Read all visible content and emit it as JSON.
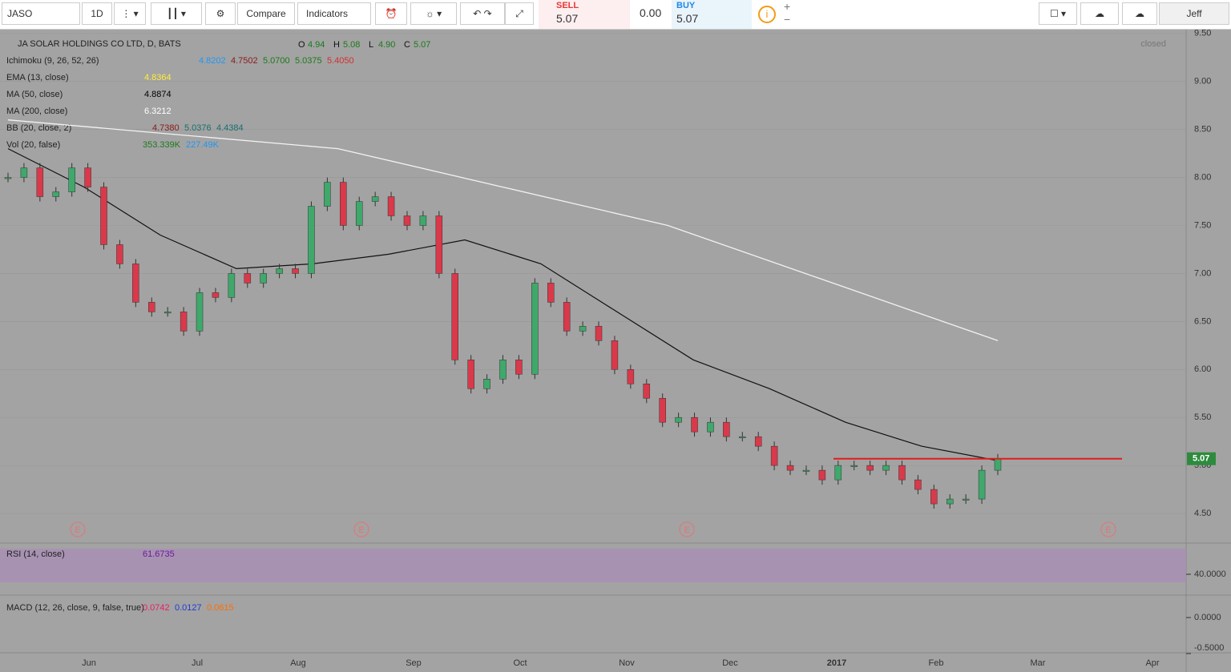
{
  "toolbar": {
    "symbol": "JASO",
    "interval": "1D",
    "compare": "Compare",
    "indicators": "Indicators",
    "sell_label": "SELL",
    "sell_price": "5.07",
    "spread": "0.00",
    "buy_label": "BUY",
    "buy_price": "5.07",
    "user": "Jeff"
  },
  "chart": {
    "title": "JA SOLAR HOLDINGS CO LTD, D, BATS",
    "ohlc": [
      {
        "k": "O",
        "v": "4.94"
      },
      {
        "k": "H",
        "v": "5.08"
      },
      {
        "k": "L",
        "v": "4.90"
      },
      {
        "k": "C",
        "v": "5.07"
      }
    ],
    "status": "closed",
    "indicators": [
      {
        "name": "Ichimoku (9, 26, 52, 26)",
        "values": [
          {
            "v": "4.8202",
            "color": "#2196f3"
          },
          {
            "v": "4.7502",
            "color": "#8b1a1a"
          },
          {
            "v": "5.0700",
            "color": "#1b7a1b"
          },
          {
            "v": "5.0375",
            "color": "#1b7a1b"
          },
          {
            "v": "5.4050",
            "color": "#d32f2f"
          }
        ]
      },
      {
        "name": "EMA (13, close)",
        "values": [
          {
            "v": "4.8364",
            "color": "#ffeb3b"
          }
        ]
      },
      {
        "name": "MA (50, close)",
        "values": [
          {
            "v": "4.8874",
            "color": "#000000"
          }
        ]
      },
      {
        "name": "MA (200, close)",
        "values": [
          {
            "v": "6.3212",
            "color": "#ffffff"
          }
        ]
      },
      {
        "name": "BB (20, close, 2)",
        "values": [
          {
            "v": "4.7380",
            "color": "#8b1a1a"
          },
          {
            "v": "5.0376",
            "color": "#1b6e6e"
          },
          {
            "v": "4.4384",
            "color": "#1b6e6e"
          }
        ]
      },
      {
        "name": "Vol (20, false)",
        "values": [
          {
            "v": "353.339K",
            "color": "#1b7a1b"
          },
          {
            "v": "227.49K",
            "color": "#2196f3"
          }
        ]
      }
    ],
    "price_ticks": [
      {
        "value": 9.5,
        "label": "9.50"
      },
      {
        "value": 9,
        "label": "9.00"
      },
      {
        "value": 8.5,
        "label": "8.50"
      },
      {
        "value": 8,
        "label": "8.00"
      },
      {
        "value": 7.5,
        "label": "7.50"
      },
      {
        "value": 7,
        "label": "7.00"
      },
      {
        "value": 6.5,
        "label": "6.50"
      },
      {
        "value": 6,
        "label": "6.00"
      },
      {
        "value": 5.5,
        "label": "5.50"
      },
      {
        "value": 5,
        "label": "5.00"
      },
      {
        "value": 4.5,
        "label": "4.50"
      }
    ],
    "ylim": [
      4.2,
      9.54
    ],
    "last_price": {
      "value": 5.07,
      "label": "5.07"
    },
    "closes": [
      8.0,
      8.1,
      7.8,
      7.85,
      8.1,
      7.9,
      7.3,
      7.1,
      6.7,
      6.6,
      6.6,
      6.4,
      6.8,
      6.75,
      7.0,
      6.9,
      7.0,
      7.05,
      7.0,
      7.7,
      7.95,
      7.5,
      7.75,
      7.8,
      7.6,
      7.5,
      7.6,
      7.0,
      6.1,
      5.8,
      5.9,
      6.1,
      5.95,
      6.9,
      6.7,
      6.4,
      6.45,
      6.3,
      6.0,
      5.85,
      5.7,
      5.45,
      5.5,
      5.35,
      5.45,
      5.3,
      5.3,
      5.2,
      5.0,
      4.95,
      4.95,
      4.85,
      5.0,
      5.0,
      4.95,
      5.0,
      4.85,
      4.75,
      4.6,
      4.65,
      4.65,
      4.95,
      5.07
    ],
    "ma50": [
      8.3,
      7.9,
      7.4,
      7.05,
      7.1,
      7.2,
      7.35,
      7.1,
      6.6,
      6.1,
      5.8,
      5.45,
      5.2,
      5.05
    ],
    "ma200": [
      8.6,
      8.45,
      8.3,
      7.9,
      7.5,
      6.9,
      6.3
    ],
    "earnings_marker": "E",
    "rsi": {
      "name": "RSI (14, close)",
      "value": "61.6735",
      "tick": {
        "value": 40,
        "label": "40.0000"
      }
    },
    "macd": {
      "name": "MACD (12, 26, close, 9, false, true)",
      "values": [
        {
          "v": "0.0742",
          "color": "#e91e63"
        },
        {
          "v": "0.0127",
          "color": "#1e3cd6"
        },
        {
          "v": "0.0615",
          "color": "#ff6d00"
        }
      ],
      "ticks": [
        {
          "value": 0,
          "label": "0.0000"
        },
        {
          "value": -0.5,
          "label": "-0.5000"
        }
      ]
    },
    "months": [
      "Jun",
      "Jul",
      "Aug",
      "Sep",
      "Oct",
      "Nov",
      "Dec",
      "2017",
      "Feb",
      "Mar",
      "Apr"
    ]
  }
}
